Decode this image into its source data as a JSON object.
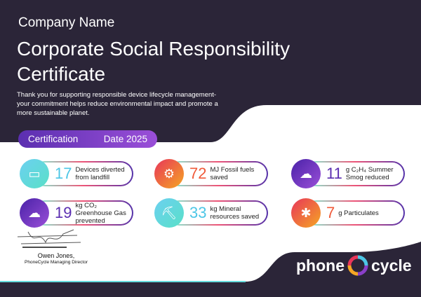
{
  "header": {
    "company": "Company Name",
    "title": "Corporate Social Responsibility Certificate",
    "intro": "Thank you for supporting responsible device lifecycle management- your commitment helps reduce environmental impact and promote a more sustainable planet."
  },
  "certification": {
    "label": "Certification",
    "date": "Date 2025"
  },
  "stats": [
    {
      "value": "17",
      "label": "Devices diverted from landfill",
      "icon": "devices-icon",
      "color": "#4cc6e6"
    },
    {
      "value": "72",
      "label": "MJ Fossil fuels saved",
      "icon": "oil-rig-icon",
      "color": "#f05a3a"
    },
    {
      "value": "11",
      "label": "g C₂H₄ Summer Smog reduced",
      "icon": "smog-cloud-icon",
      "color": "#5a2db0"
    },
    {
      "value": "19",
      "label": "kg CO₂ Greenhouse Gas prevented",
      "icon": "co2-cloud-icon",
      "color": "#5a2db0"
    },
    {
      "value": "33",
      "label": "kg Mineral resources saved",
      "icon": "mine-cart-icon",
      "color": "#4cc6e6"
    },
    {
      "value": "7",
      "label": "g Particulates",
      "icon": "particles-icon",
      "color": "#f05a3a"
    }
  ],
  "signature": {
    "name": "Owen Jones,",
    "role": "PhoneCycle Managing Director"
  },
  "logo": {
    "left": "phone",
    "right": "cycle"
  }
}
